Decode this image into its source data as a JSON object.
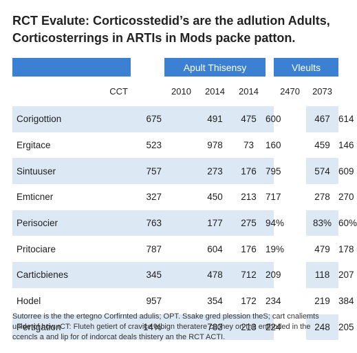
{
  "title": {
    "line1": "RCT Evalute: Corticosstedid’s are the adlution Adults,",
    "line2": "Corticosterrings in ARTIs in Mods packe patton."
  },
  "table": {
    "group_left": "Apult Thisensy",
    "group_right": "Vleults",
    "columns": [
      "CCT",
      "2010",
      "2014",
      "2014",
      "2470",
      "2073"
    ],
    "rows": [
      {
        "label": "Corigottion",
        "values": [
          "675",
          "491",
          "475",
          "600",
          "467",
          "614"
        ]
      },
      {
        "label": "Ergitace",
        "values": [
          "523",
          "978",
          "73",
          "160",
          "459",
          "146"
        ]
      },
      {
        "label": "Sintuuser",
        "values": [
          "757",
          "273",
          "176",
          "795",
          "574",
          "609"
        ]
      },
      {
        "label": "Emticner",
        "values": [
          "327",
          "450",
          "213",
          "717",
          "278",
          "270"
        ]
      },
      {
        "label": "Perisocier",
        "values": [
          "763",
          "177",
          "275",
          "94%",
          "83%",
          "60%"
        ]
      },
      {
        "label": "Pritociare",
        "values": [
          "787",
          "604",
          "176",
          "19%",
          "479",
          "178"
        ]
      },
      {
        "label": "Carticbienes",
        "values": [
          "345",
          "478",
          "712",
          "209",
          "118",
          "207"
        ]
      },
      {
        "label": "Hodel",
        "values": [
          "957",
          "354",
          "172",
          "234",
          "219",
          "384"
        ]
      },
      {
        "label": "Pertigation",
        "values": [
          "14%",
          "783",
          "213",
          "224",
          "248",
          "205"
        ]
      }
    ]
  },
  "footnote": {
    "line1": "Sutorree is the the ertegno Corfirnted adulis; OPT. Ssake gred plession theS; cart cnaliemts",
    "line2": "unide of how rCT: Fluteh getiert of cravice atbign theratere cechey on the enthoded in the",
    "line3": "ccencls a and lip for of indorcat deals thistery an the RCT ACTI."
  }
}
